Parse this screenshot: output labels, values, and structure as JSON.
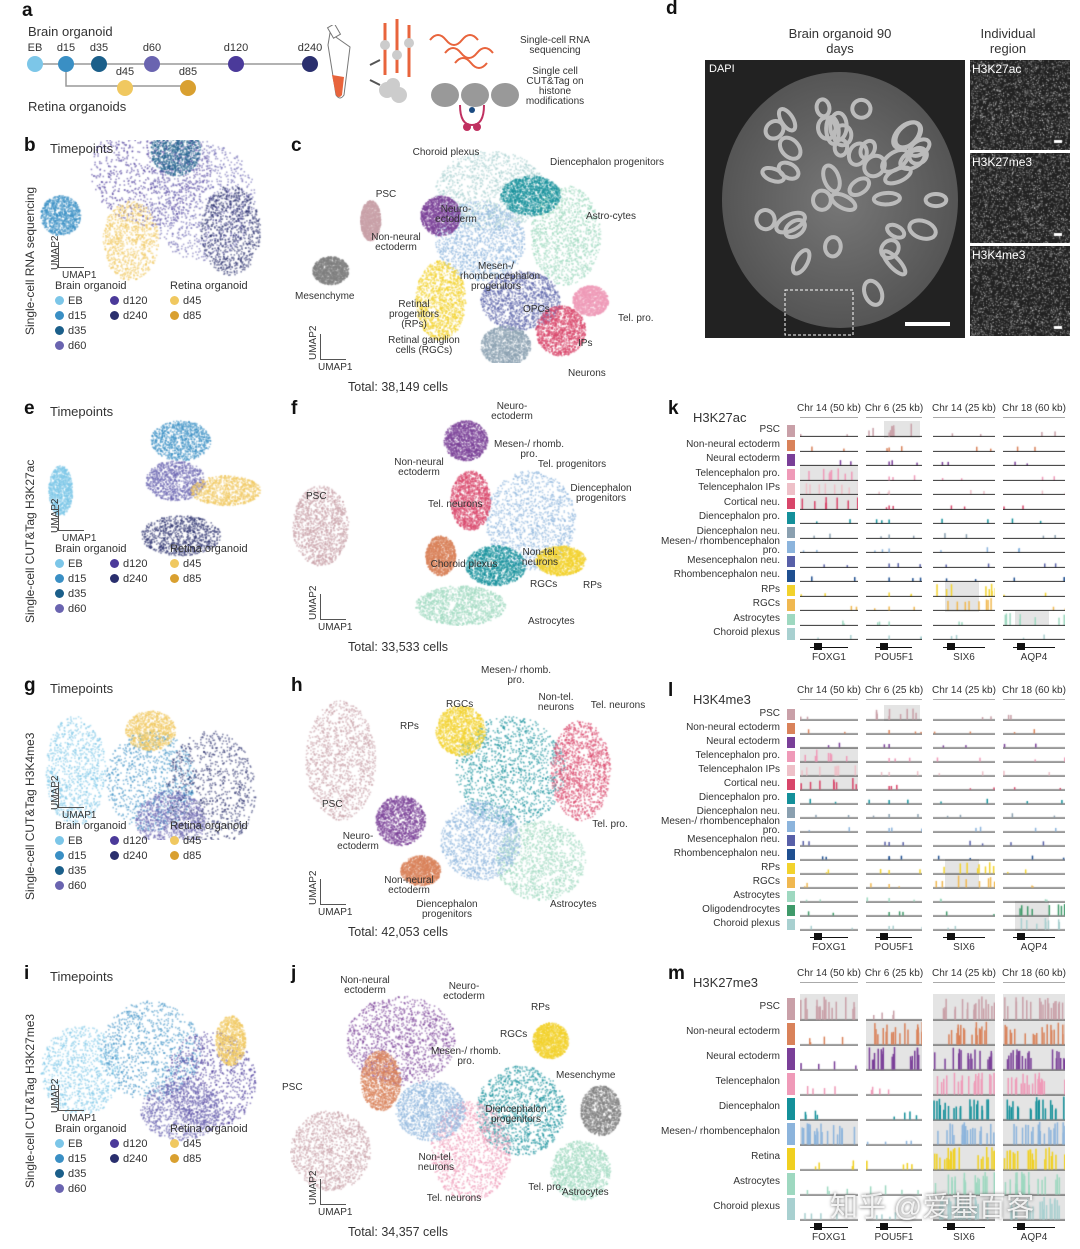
{
  "panel_letters": [
    "a",
    "b",
    "c",
    "d",
    "e",
    "f",
    "g",
    "h",
    "i",
    "j",
    "k",
    "l",
    "m"
  ],
  "colors": {
    "EB": "#7cc6e8",
    "d15": "#3a8fc4",
    "d35": "#1b5f8a",
    "d60": "#6a64b0",
    "d120": "#4b3a9a",
    "d240": "#2a2f6e",
    "d45": "#f0c860",
    "d85": "#d9a030",
    "PSC": "#c9a0a8",
    "NNE": "#d9825a",
    "NE": "#7a3f98",
    "TelP": "#ef9ab8",
    "TelIP": "#eec0c8",
    "Cort": "#d8466a",
    "DienP": "#14909a",
    "DienN": "#8aa0b0",
    "MRP": "#8cb4dc",
    "MesN": "#5860a8",
    "RhN": "#1f4f90",
    "RP": "#f2d22c",
    "RGC": "#f0b850",
    "Astro": "#9ed8c0",
    "Chor": "#a8d0d0",
    "Oligo": "#3f9a6a",
    "OPC": "#2e9a5a",
    "Mes": "#808080",
    "Retina": "#f0d020"
  },
  "panel_a": {
    "brain_title": "Brain organoid",
    "retina_title": "Retina organoids",
    "timepoints": [
      "EB",
      "d15",
      "d35",
      "d60",
      "d120",
      "d240",
      "d45",
      "d85"
    ],
    "method1": "Single-cell RNA sequencing",
    "method2": "Single cell CUT&Tag on histone modifications"
  },
  "panel_d": {
    "title": "Brain organoid 90 days",
    "side_title": "Individual region",
    "stain": "DAPI",
    "marks": [
      "H3K27ac",
      "H3K27me3",
      "H3K4me3"
    ]
  },
  "umap": {
    "x": "UMAP1",
    "y": "UMAP2",
    "timepoints_title": "Timepoints",
    "brain": "Brain organoid",
    "retina": "Retina organoid"
  },
  "rows": {
    "b": "Single-cell RNA sequencing",
    "e": "Single-cell CUT&Tag H3K27ac",
    "g": "Single-cell CUT&Tag H3K4me3",
    "i": "Single-cell CUT&Tag H3K27me3"
  },
  "totals": {
    "c": "Total: 38,149 cells",
    "f": "Total: 33,533 cells",
    "h": "Total: 42,053 cells",
    "j": "Total: 34,357 cells"
  },
  "labels_c": [
    "Choroid plexus",
    "Diencephalon progenitors",
    "PSC",
    "Neuro-ectoderm",
    "Astro-cytes",
    "Non-neural ectoderm",
    "Mesen-/ rhombencephalon progenitors",
    "Mesenchyme",
    "Retinal progenitors (RPs)",
    "OPCs",
    "Tel. pro.",
    "Retinal ganglion cells (RGCs)",
    "IPs",
    "Neurons"
  ],
  "labels_f": [
    "Neuro-ectoderm",
    "Mesen-/ rhomb. pro.",
    "Non-neural ectoderm",
    "Tel. progenitors",
    "Diencephalon progenitors",
    "PSC",
    "Tel. neurons",
    "Choroid plexus",
    "Non-tel. neurons",
    "RGCs",
    "RPs",
    "Astrocytes"
  ],
  "labels_h": [
    "Mesen-/ rhomb. pro.",
    "RGCs",
    "Non-tel. neurons",
    "Tel. neurons",
    "RPs",
    "PSC",
    "Neuro-ectoderm",
    "Tel. pro.",
    "Non-neural ectoderm",
    "Diencephalon progenitors",
    "Astrocytes"
  ],
  "labels_j": [
    "Non-neural ectoderm",
    "Neuro-ectoderm",
    "RPs",
    "RGCs",
    "Mesen-/ rhomb. pro.",
    "Mesenchyme",
    "PSC",
    "Diencephalon progenitors",
    "Non-tel. neurons",
    "Tel. pro.",
    "Astrocytes",
    "Tel. neurons"
  ],
  "tracks": {
    "columns": [
      "Chr 14 (50 kb)",
      "Chr 6 (25 kb)",
      "Chr 14 (25 kb)",
      "Chr 18 (60 kb)"
    ],
    "genes": [
      "FOXG1",
      "POU5F1",
      "SIX6",
      "AQP4"
    ],
    "k": {
      "mark": "H3K27ac",
      "rows": [
        [
          "PSC",
          "PSC"
        ],
        [
          "Non-neural ectoderm",
          "NNE"
        ],
        [
          "Neural ectoderm",
          "NE"
        ],
        [
          "Telencephalon pro.",
          "TelP"
        ],
        [
          "Telencephalon IPs",
          "TelIP"
        ],
        [
          "Cortical neu.",
          "Cort"
        ],
        [
          "Diencephalon pro.",
          "DienP"
        ],
        [
          "Diencephalon neu.",
          "DienN"
        ],
        [
          "Mesen-/ rhombencephalon pro.",
          "MRP"
        ],
        [
          "Mesencephalon neu.",
          "MesN"
        ],
        [
          "Rhombencephalon neu.",
          "RhN"
        ],
        [
          "RPs",
          "RP"
        ],
        [
          "RGCs",
          "RGC"
        ],
        [
          "Astrocytes",
          "Astro"
        ],
        [
          "Choroid plexus",
          "Chor"
        ]
      ]
    },
    "l": {
      "mark": "H3K4me3",
      "rows": [
        [
          "PSC",
          "PSC"
        ],
        [
          "Non-neural ectoderm",
          "NNE"
        ],
        [
          "Neural ectoderm",
          "NE"
        ],
        [
          "Telencephalon pro.",
          "TelP"
        ],
        [
          "Telencephalon IPs",
          "TelIP"
        ],
        [
          "Cortical neu.",
          "Cort"
        ],
        [
          "Diencephalon pro.",
          "DienP"
        ],
        [
          "Diencephalon neu.",
          "DienN"
        ],
        [
          "Mesen-/ rhombencephalon pro.",
          "MRP"
        ],
        [
          "Mesencephalon neu.",
          "MesN"
        ],
        [
          "Rhombencephalon neu.",
          "RhN"
        ],
        [
          "RPs",
          "RP"
        ],
        [
          "RGCs",
          "RGC"
        ],
        [
          "Astrocytes",
          "Astro"
        ],
        [
          "Oligodendrocytes",
          "Oligo"
        ],
        [
          "Choroid plexus",
          "Chor"
        ]
      ]
    },
    "m": {
      "mark": "H3K27me3",
      "rows": [
        [
          "PSC",
          "PSC"
        ],
        [
          "Non-neural ectoderm",
          "NNE"
        ],
        [
          "Neural ectoderm",
          "NE"
        ],
        [
          "Telencephalon",
          "TelP"
        ],
        [
          "Diencephalon",
          "DienP"
        ],
        [
          "Mesen-/ rhombencephalon",
          "MRP"
        ],
        [
          "Retina",
          "Retina"
        ],
        [
          "Astrocytes",
          "Astro"
        ],
        [
          "Choroid plexus",
          "Chor"
        ]
      ]
    }
  },
  "watermark": "知乎 @爱基百客"
}
